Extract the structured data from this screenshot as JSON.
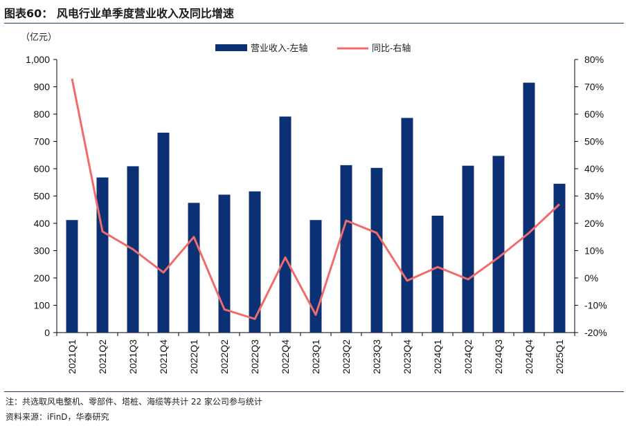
{
  "title": "图表60：  风电行业单季度营业收入及同比增速",
  "note": "注：共选取风电整机、零部件、塔桩、海缆等共计 22 家公司参与统计",
  "source": "资料来源：iFinD，华泰研究",
  "colors": {
    "bar": "#0b3174",
    "line": "#f26b6b",
    "rule": "#1f3a68"
  },
  "chart_data": {
    "type": "bar",
    "categories": [
      "2021Q1",
      "2021Q2",
      "2021Q3",
      "2021Q4",
      "2022Q1",
      "2022Q2",
      "2022Q3",
      "2022Q4",
      "2023Q1",
      "2023Q2",
      "2023Q3",
      "2023Q4",
      "2024Q1",
      "2024Q2",
      "2024Q3",
      "2024Q4",
      "2025Q1"
    ],
    "y_left_unit": "（亿元）",
    "ylim_left": [
      0,
      1000
    ],
    "yticks_left": [
      "0",
      "100",
      "200",
      "300",
      "400",
      "500",
      "600",
      "700",
      "800",
      "900",
      "1,000"
    ],
    "ylim_right": [
      -20,
      80
    ],
    "yticks_right": [
      "-20%",
      "-10%",
      "0%",
      "10%",
      "20%",
      "30%",
      "40%",
      "50%",
      "60%",
      "70%",
      "80%"
    ],
    "legend_position": "top-center",
    "series": [
      {
        "name": "营业收入-左轴",
        "type": "bar",
        "axis": "left",
        "values": [
          412,
          568,
          609,
          732,
          475,
          505,
          517,
          791,
          412,
          613,
          603,
          786,
          428,
          611,
          647,
          915,
          545
        ]
      },
      {
        "name": "同比-右轴",
        "type": "line",
        "axis": "right",
        "values": [
          73,
          17,
          10.5,
          2,
          15,
          -11.5,
          -15,
          7.5,
          -13.5,
          21,
          16.5,
          -1,
          4,
          -0.5,
          7.5,
          16.5,
          27
        ]
      }
    ]
  }
}
